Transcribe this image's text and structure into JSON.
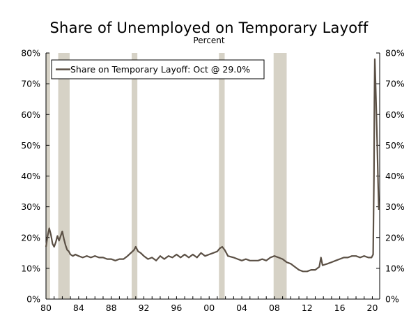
{
  "chart_data": {
    "type": "line",
    "title": "Share of Unemployed on Temporary Layoff",
    "subtitle": "Percent",
    "xlabel": "",
    "ylabel": "",
    "xlim": [
      1980,
      2020.9
    ],
    "ylim": [
      0,
      80
    ],
    "grid": false,
    "legend_placement": "top-left",
    "x_tick_values": [
      1980,
      1984,
      1988,
      1992,
      1996,
      2000,
      2004,
      2008,
      2012,
      2016,
      2020
    ],
    "x_tick_labels": [
      "80",
      "84",
      "88",
      "92",
      "96",
      "00",
      "04",
      "08",
      "12",
      "16",
      "20"
    ],
    "y_tick_values": [
      0,
      10,
      20,
      30,
      40,
      50,
      60,
      70,
      80
    ],
    "y_tick_labels": [
      "0%",
      "10%",
      "20%",
      "30%",
      "40%",
      "50%",
      "60%",
      "70%",
      "80%"
    ],
    "recessions": [
      [
        1980.0,
        1980.5
      ],
      [
        1981.5,
        1982.9
      ],
      [
        1990.5,
        1991.2
      ],
      [
        2001.2,
        2001.9
      ],
      [
        2007.9,
        2009.5
      ]
    ],
    "recession_color": "#d6d2c6",
    "line_color": "#5b5045",
    "series": [
      {
        "name": "Share on Temporary Layoff: Oct @ 29.0%",
        "x": [
          1980.0,
          1980.2,
          1980.4,
          1980.6,
          1980.8,
          1981.0,
          1981.2,
          1981.4,
          1981.6,
          1981.8,
          1982.0,
          1982.2,
          1982.4,
          1982.6,
          1982.8,
          1983.0,
          1983.3,
          1983.6,
          1984.0,
          1984.5,
          1985.0,
          1985.5,
          1986.0,
          1986.5,
          1987.0,
          1987.5,
          1988.0,
          1988.5,
          1989.0,
          1989.5,
          1990.0,
          1990.4,
          1990.8,
          1991.0,
          1991.3,
          1991.6,
          1992.0,
          1992.5,
          1993.0,
          1993.5,
          1994.0,
          1994.5,
          1995.0,
          1995.5,
          1996.0,
          1996.5,
          1997.0,
          1997.5,
          1998.0,
          1998.5,
          1999.0,
          1999.5,
          2000.0,
          2000.5,
          2001.0,
          2001.3,
          2001.6,
          2001.9,
          2002.3,
          2003.0,
          2003.5,
          2004.0,
          2004.5,
          2005.0,
          2005.5,
          2006.0,
          2006.5,
          2007.0,
          2007.5,
          2008.0,
          2008.5,
          2009.0,
          2009.5,
          2010.0,
          2010.5,
          2011.0,
          2011.5,
          2012.0,
          2012.5,
          2013.0,
          2013.5,
          2013.7,
          2013.9,
          2014.5,
          2015.0,
          2015.5,
          2016.0,
          2016.5,
          2017.0,
          2017.5,
          2018.0,
          2018.5,
          2019.0,
          2019.5,
          2019.9,
          2020.1,
          2020.2,
          2020.25,
          2020.3,
          2020.4,
          2020.5,
          2020.6,
          2020.7,
          2020.8
        ],
        "values": [
          17.0,
          20.5,
          23.0,
          21.0,
          18.0,
          17.0,
          18.5,
          20.5,
          19.0,
          20.5,
          22.0,
          19.5,
          17.5,
          16.0,
          15.5,
          14.5,
          14.0,
          14.5,
          14.0,
          13.5,
          14.0,
          13.5,
          14.0,
          13.5,
          13.5,
          13.0,
          13.0,
          12.5,
          13.0,
          13.0,
          14.0,
          15.0,
          16.0,
          17.0,
          15.5,
          15.0,
          14.0,
          13.0,
          13.5,
          12.5,
          14.0,
          13.0,
          14.0,
          13.5,
          14.5,
          13.5,
          14.5,
          13.5,
          14.5,
          13.5,
          15.0,
          14.0,
          14.5,
          15.0,
          15.5,
          16.5,
          17.0,
          16.0,
          14.0,
          13.5,
          13.0,
          12.5,
          13.0,
          12.5,
          12.5,
          12.5,
          13.0,
          12.5,
          13.5,
          14.0,
          13.5,
          13.0,
          12.0,
          11.5,
          10.5,
          9.5,
          9.0,
          9.0,
          9.5,
          9.5,
          10.5,
          13.5,
          11.0,
          11.5,
          12.0,
          12.5,
          13.0,
          13.5,
          13.5,
          14.0,
          14.0,
          13.5,
          14.0,
          13.5,
          13.5,
          14.5,
          40.0,
          64.0,
          78.0,
          70.0,
          60.0,
          50.0,
          38.0,
          29.0
        ]
      }
    ]
  },
  "colors": {
    "recession": "#d6d2c6",
    "line": "#5b5045",
    "axis": "#000000"
  }
}
